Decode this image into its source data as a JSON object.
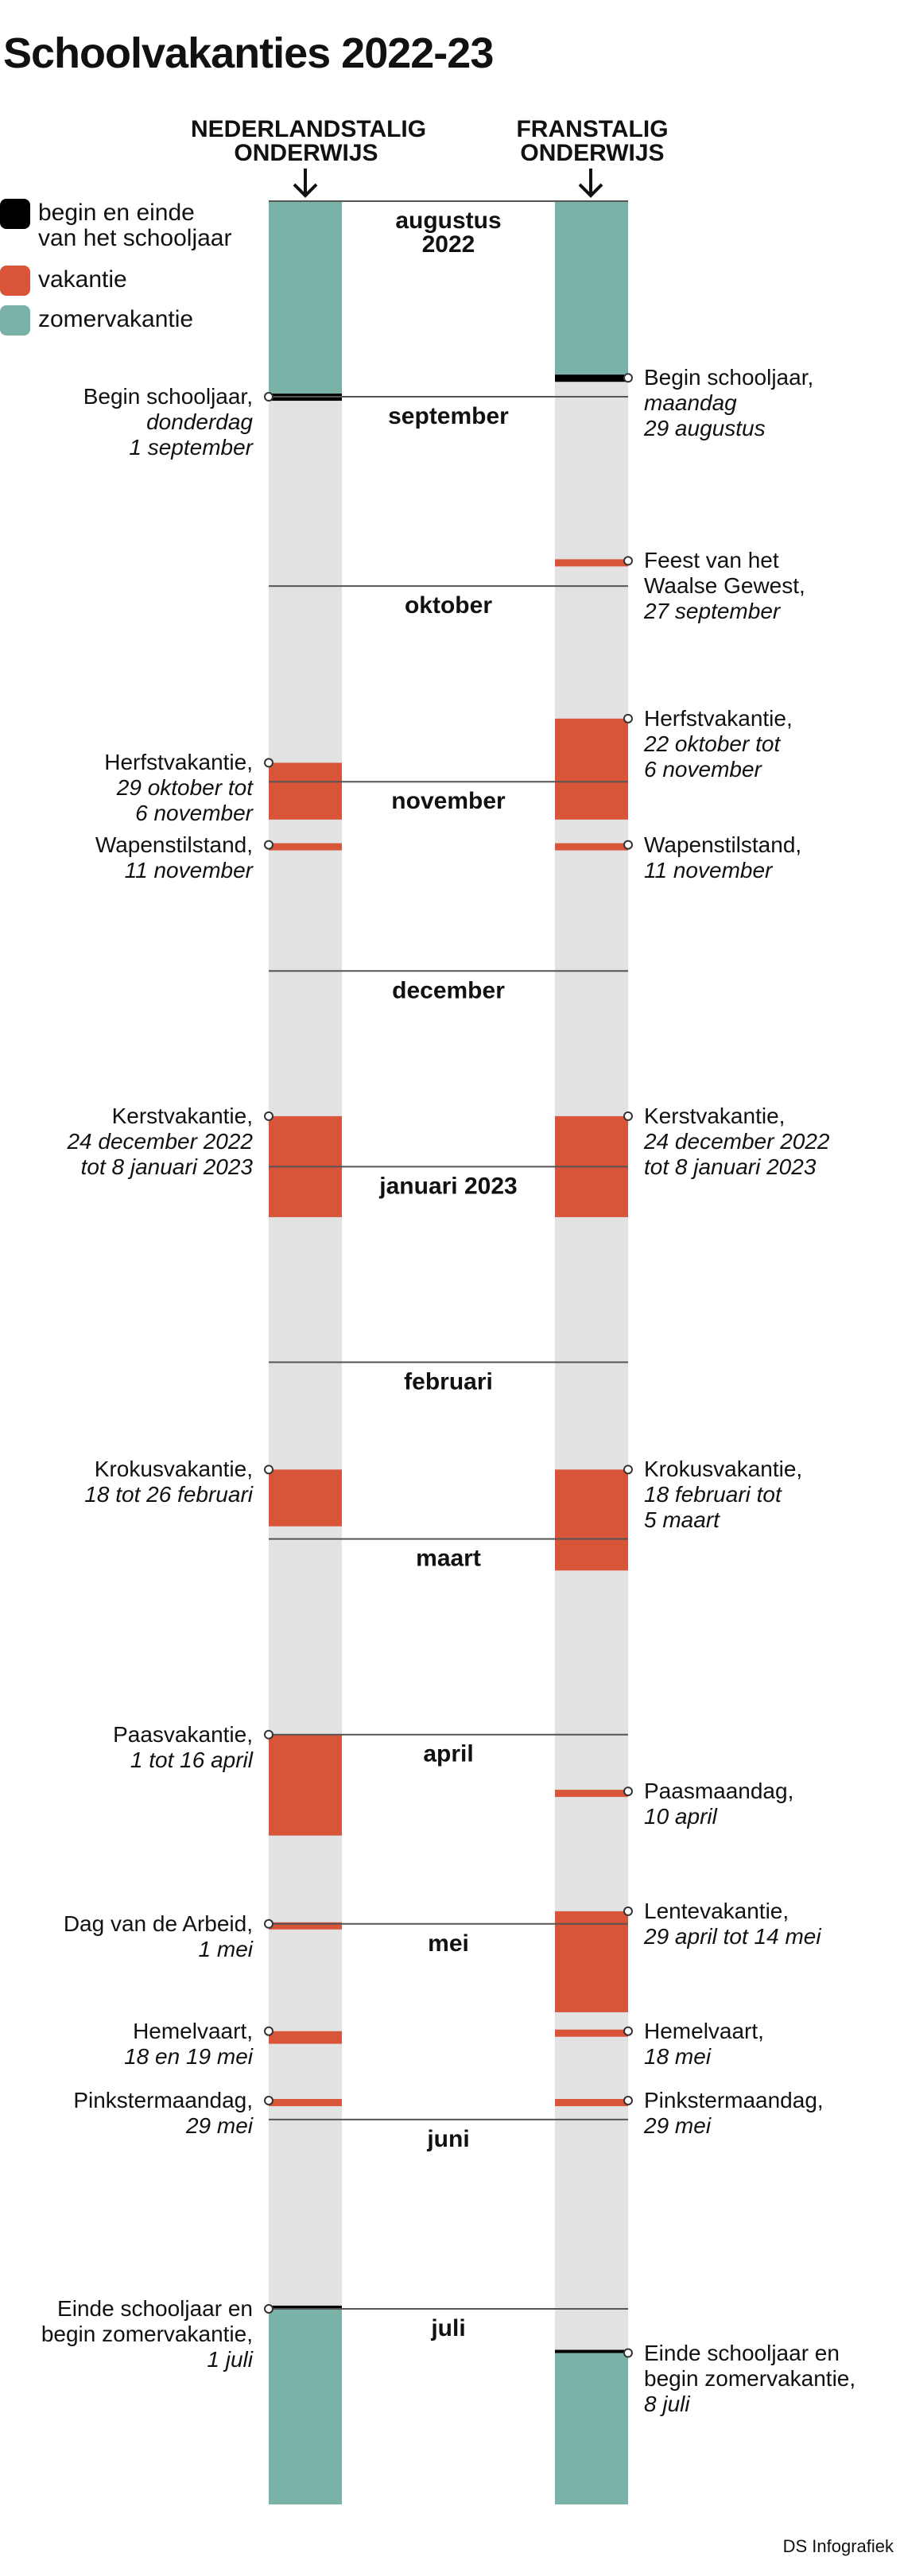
{
  "title": "Schoolvakanties 2022-23",
  "columns": {
    "left": "NEDERLANDSTALIG ONDERWIJS",
    "right": "FRANSTALIG ONDERWIJS"
  },
  "legend": [
    {
      "label": "begin en einde\nvan het schooljaar",
      "color": "#000000"
    },
    {
      "label": "vakantie",
      "color": "#d8553a"
    },
    {
      "label": "zomervakantie",
      "color": "#7bb2a8"
    }
  ],
  "colors": {
    "track": "#e2e2e2",
    "vacation": "#d8553a",
    "summer": "#7bb2a8",
    "schoolyear": "#000000",
    "line": "#555555"
  },
  "months": [
    {
      "name": "augustus\n2022",
      "start": "2022-08-01"
    },
    {
      "name": "september",
      "start": "2022-09-01"
    },
    {
      "name": "oktober",
      "start": "2022-10-01"
    },
    {
      "name": "november",
      "start": "2022-11-01"
    },
    {
      "name": "december",
      "start": "2022-12-01"
    },
    {
      "name": "januari 2023",
      "start": "2023-01-01"
    },
    {
      "name": "februari",
      "start": "2023-02-01"
    },
    {
      "name": "maart",
      "start": "2023-03-01"
    },
    {
      "name": "april",
      "start": "2023-04-01"
    },
    {
      "name": "mei",
      "start": "2023-05-01"
    },
    {
      "name": "juni",
      "start": "2023-06-01"
    },
    {
      "name": "juli",
      "start": "2023-07-01"
    }
  ],
  "timeline_end": "2023-08-01",
  "left_periods": [
    {
      "type": "summer",
      "from": "2022-08-01",
      "to": "2022-09-01"
    },
    {
      "type": "schoolyear",
      "date": "2022-09-01"
    },
    {
      "type": "vacation",
      "from": "2022-10-29",
      "to": "2022-11-07"
    },
    {
      "type": "vacation",
      "from": "2022-11-11",
      "to": "2022-11-12"
    },
    {
      "type": "vacation",
      "from": "2022-12-24",
      "to": "2023-01-09"
    },
    {
      "type": "vacation",
      "from": "2023-02-18",
      "to": "2023-02-27"
    },
    {
      "type": "vacation",
      "from": "2023-04-01",
      "to": "2023-04-17"
    },
    {
      "type": "vacation",
      "from": "2023-05-01",
      "to": "2023-05-02"
    },
    {
      "type": "vacation",
      "from": "2023-05-18",
      "to": "2023-05-20"
    },
    {
      "type": "vacation",
      "from": "2023-05-29",
      "to": "2023-05-30"
    },
    {
      "type": "schoolyear",
      "date": "2023-07-01"
    },
    {
      "type": "summer",
      "from": "2023-07-01",
      "to": "2023-08-01"
    }
  ],
  "right_periods": [
    {
      "type": "summer",
      "from": "2022-08-01",
      "to": "2022-08-29"
    },
    {
      "type": "schoolyear",
      "date": "2022-08-29"
    },
    {
      "type": "vacation",
      "from": "2022-09-27",
      "to": "2022-09-28"
    },
    {
      "type": "vacation",
      "from": "2022-10-22",
      "to": "2022-11-07"
    },
    {
      "type": "vacation",
      "from": "2022-11-11",
      "to": "2022-11-12"
    },
    {
      "type": "vacation",
      "from": "2022-12-24",
      "to": "2023-01-09"
    },
    {
      "type": "vacation",
      "from": "2023-02-18",
      "to": "2023-03-06"
    },
    {
      "type": "vacation",
      "from": "2023-04-10",
      "to": "2023-04-11"
    },
    {
      "type": "vacation",
      "from": "2023-04-29",
      "to": "2023-05-15"
    },
    {
      "type": "vacation",
      "from": "2023-05-18",
      "to": "2023-05-19"
    },
    {
      "type": "vacation",
      "from": "2023-05-29",
      "to": "2023-05-30"
    },
    {
      "type": "schoolyear",
      "date": "2023-07-08"
    },
    {
      "type": "summer",
      "from": "2023-07-08",
      "to": "2023-08-01"
    }
  ],
  "left_events": [
    {
      "date": "2022-09-01",
      "name": "Begin schooljaar,",
      "detail": "donderdag\n1 september"
    },
    {
      "date": "2022-10-29",
      "name": "Herfstvakantie,",
      "detail": "29 oktober tot\n6 november"
    },
    {
      "date": "2022-11-11",
      "name": "Wapenstilstand,",
      "detail": "11 november"
    },
    {
      "date": "2022-12-24",
      "name": "Kerstvakantie,",
      "detail": "24 december 2022\ntot 8 januari 2023"
    },
    {
      "date": "2023-02-18",
      "name": "Krokusvakantie,",
      "detail": "18  tot 26 februari"
    },
    {
      "date": "2023-04-01",
      "name": "Paasvakantie,",
      "detail": "1 tot 16 april"
    },
    {
      "date": "2023-05-01",
      "name": "Dag van de Arbeid,",
      "detail": "1 mei"
    },
    {
      "date": "2023-05-18",
      "name": "Hemelvaart,",
      "detail": "18 en 19 mei"
    },
    {
      "date": "2023-05-29",
      "name": "Pinkstermaandag,",
      "detail": "29 mei"
    },
    {
      "date": "2023-07-01",
      "name": "Einde schooljaar en\nbegin zomervakantie,",
      "detail": "1 juli"
    }
  ],
  "right_events": [
    {
      "date": "2022-08-29",
      "name": "Begin schooljaar,",
      "detail": "maandag\n29 augustus"
    },
    {
      "date": "2022-09-27",
      "name": "Feest van het\nWaalse Gewest,",
      "detail": "27 september"
    },
    {
      "date": "2022-10-22",
      "name": "Herfstvakantie,",
      "detail": "22 oktober tot\n6 november"
    },
    {
      "date": "2022-11-11",
      "name": "Wapenstilstand,",
      "detail": "11 november"
    },
    {
      "date": "2022-12-24",
      "name": "Kerstvakantie,",
      "detail": "24 december 2022\ntot 8 januari 2023"
    },
    {
      "date": "2023-02-18",
      "name": "Krokusvakantie,",
      "detail": "18 februari tot\n5 maart"
    },
    {
      "date": "2023-04-10",
      "name": "Paasmaandag,",
      "detail": "10 april"
    },
    {
      "date": "2023-04-29",
      "name": "Lentevakantie,",
      "detail": "29 april tot 14 mei"
    },
    {
      "date": "2023-05-18",
      "name": "Hemelvaart,",
      "detail": "18 mei"
    },
    {
      "date": "2023-05-29",
      "name": "Pinkstermaandag,",
      "detail": "29 mei"
    },
    {
      "date": "2023-07-08",
      "name": "Einde schooljaar en\nbegin zomervakantie,",
      "detail": "8 juli"
    }
  ],
  "credit": "DS Infografiek"
}
